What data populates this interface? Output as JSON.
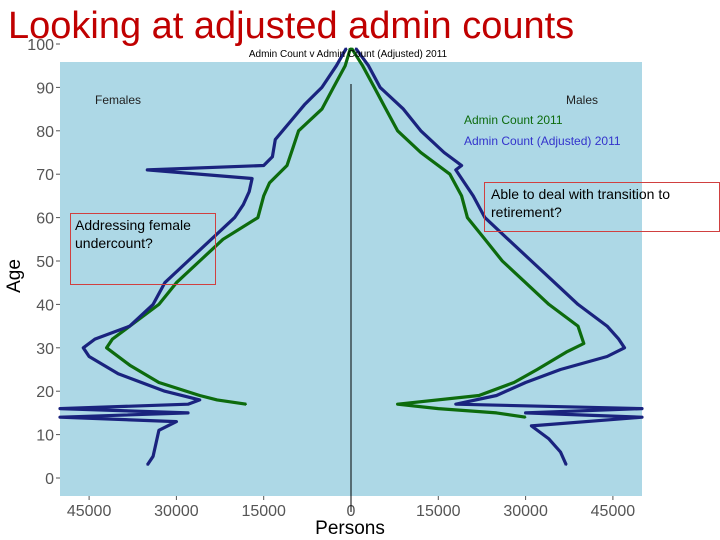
{
  "slide": {
    "title": "Looking at adjusted admin counts"
  },
  "callouts": {
    "left": "Addressing female undercount?",
    "right": "Able to deal with transition to retirement?"
  },
  "colors": {
    "panel_bg": "#add8e6",
    "adjusted_line": "#1a237e",
    "count_line": "#0d6b0d",
    "title": "#c00000"
  },
  "chart_data": {
    "type": "line",
    "title": "Admin Count v Admin Count (Adjusted) 2011",
    "xlabel": "Persons",
    "ylabel": "Age",
    "xlim": [
      -50000,
      50000
    ],
    "ylim": [
      0,
      100
    ],
    "x_ticks": [
      -45000,
      -30000,
      -15000,
      0,
      15000,
      30000,
      45000
    ],
    "x_tick_labels": [
      "45000",
      "30000",
      "15000",
      "0",
      "15000",
      "30000",
      "45000"
    ],
    "y_ticks": [
      0,
      10,
      20,
      30,
      40,
      50,
      60,
      70,
      80,
      90,
      100
    ],
    "panel_labels": {
      "left": "Females",
      "right": "Males"
    },
    "legend": [
      "Admin Count 2011",
      "Admin Count (Adjusted) 2011"
    ],
    "legend_position": "top-right",
    "series": [
      {
        "name": "Admin Count 2011",
        "color": "#0d6b0d",
        "points": [
          {
            "side": "female",
            "age": 17,
            "persons": -18000
          },
          {
            "side": "female",
            "age": 18,
            "persons": -23000
          },
          {
            "side": "female",
            "age": 19,
            "persons": -26000
          },
          {
            "side": "female",
            "age": 22,
            "persons": -33000
          },
          {
            "side": "female",
            "age": 26,
            "persons": -38000
          },
          {
            "side": "female",
            "age": 30,
            "persons": -42000
          },
          {
            "side": "female",
            "age": 32,
            "persons": -41000
          },
          {
            "side": "female",
            "age": 35,
            "persons": -38000
          },
          {
            "side": "female",
            "age": 40,
            "persons": -33000
          },
          {
            "side": "female",
            "age": 45,
            "persons": -30000
          },
          {
            "side": "female",
            "age": 50,
            "persons": -26000
          },
          {
            "side": "female",
            "age": 55,
            "persons": -22000
          },
          {
            "side": "female",
            "age": 60,
            "persons": -16000
          },
          {
            "side": "female",
            "age": 65,
            "persons": -15000
          },
          {
            "side": "female",
            "age": 68,
            "persons": -14000
          },
          {
            "side": "female",
            "age": 72,
            "persons": -11000
          },
          {
            "side": "female",
            "age": 76,
            "persons": -10000
          },
          {
            "side": "female",
            "age": 80,
            "persons": -9000
          },
          {
            "side": "female",
            "age": 85,
            "persons": -5000
          },
          {
            "side": "female",
            "age": 90,
            "persons": -3000
          },
          {
            "side": "female",
            "age": 95,
            "persons": -1000
          },
          {
            "side": "female",
            "age": 99,
            "persons": -100
          },
          {
            "side": "male",
            "age": 99,
            "persons": 100
          },
          {
            "side": "male",
            "age": 95,
            "persons": 2000
          },
          {
            "side": "male",
            "age": 90,
            "persons": 4000
          },
          {
            "side": "male",
            "age": 85,
            "persons": 6000
          },
          {
            "side": "male",
            "age": 80,
            "persons": 8000
          },
          {
            "side": "male",
            "age": 75,
            "persons": 12000
          },
          {
            "side": "male",
            "age": 70,
            "persons": 17000
          },
          {
            "side": "male",
            "age": 65,
            "persons": 19000
          },
          {
            "side": "male",
            "age": 60,
            "persons": 20000
          },
          {
            "side": "male",
            "age": 55,
            "persons": 23000
          },
          {
            "side": "male",
            "age": 50,
            "persons": 26000
          },
          {
            "side": "male",
            "age": 45,
            "persons": 30000
          },
          {
            "side": "male",
            "age": 40,
            "persons": 34000
          },
          {
            "side": "male",
            "age": 35,
            "persons": 39000
          },
          {
            "side": "male",
            "age": 31,
            "persons": 40000
          },
          {
            "side": "male",
            "age": 29,
            "persons": 37000
          },
          {
            "side": "male",
            "age": 25,
            "persons": 32000
          },
          {
            "side": "male",
            "age": 22,
            "persons": 28000
          },
          {
            "side": "male",
            "age": 19,
            "persons": 22000
          },
          {
            "side": "male",
            "age": 17,
            "persons": 8000
          },
          {
            "side": "male",
            "age": 16,
            "persons": 15000
          },
          {
            "side": "male",
            "age": 15,
            "persons": 25000
          },
          {
            "side": "male",
            "age": 14,
            "persons": 30000
          }
        ]
      },
      {
        "name": "Admin Count (Adjusted) 2011",
        "color": "#1a237e",
        "points": [
          {
            "side": "female",
            "age": 3,
            "persons": -35000
          },
          {
            "side": "female",
            "age": 5,
            "persons": -34000
          },
          {
            "side": "female",
            "age": 8,
            "persons": -33500
          },
          {
            "side": "female",
            "age": 11,
            "persons": -33000
          },
          {
            "side": "female",
            "age": 13,
            "persons": -30000
          },
          {
            "side": "female",
            "age": 14,
            "persons": -50000
          },
          {
            "side": "female",
            "age": 15,
            "persons": -28000
          },
          {
            "side": "female",
            "age": 16,
            "persons": -50000
          },
          {
            "side": "female",
            "age": 17,
            "persons": -28000
          },
          {
            "side": "female",
            "age": 18,
            "persons": -26000
          },
          {
            "side": "female",
            "age": 20,
            "persons": -32000
          },
          {
            "side": "female",
            "age": 24,
            "persons": -40000
          },
          {
            "side": "female",
            "age": 28,
            "persons": -45000
          },
          {
            "side": "female",
            "age": 30,
            "persons": -46000
          },
          {
            "side": "female",
            "age": 32,
            "persons": -44000
          },
          {
            "side": "female",
            "age": 35,
            "persons": -38000
          },
          {
            "side": "female",
            "age": 40,
            "persons": -34000
          },
          {
            "side": "female",
            "age": 45,
            "persons": -32000
          },
          {
            "side": "female",
            "age": 50,
            "persons": -28000
          },
          {
            "side": "female",
            "age": 55,
            "persons": -24000
          },
          {
            "side": "female",
            "age": 60,
            "persons": -20000
          },
          {
            "side": "female",
            "age": 63,
            "persons": -18500
          },
          {
            "side": "female",
            "age": 66,
            "persons": -17500
          },
          {
            "side": "female",
            "age": 69,
            "persons": -17000
          },
          {
            "side": "female",
            "age": 71,
            "persons": -35000
          },
          {
            "side": "female",
            "age": 72,
            "persons": -15000
          },
          {
            "side": "female",
            "age": 74,
            "persons": -13500
          },
          {
            "side": "female",
            "age": 78,
            "persons": -13000
          },
          {
            "side": "female",
            "age": 82,
            "persons": -10500
          },
          {
            "side": "female",
            "age": 86,
            "persons": -8000
          },
          {
            "side": "female",
            "age": 90,
            "persons": -5000
          },
          {
            "side": "female",
            "age": 95,
            "persons": -2500
          },
          {
            "side": "female",
            "age": 99,
            "persons": -800
          },
          {
            "side": "male",
            "age": 99,
            "persons": 800
          },
          {
            "side": "male",
            "age": 95,
            "persons": 3000
          },
          {
            "side": "male",
            "age": 90,
            "persons": 5000
          },
          {
            "side": "male",
            "age": 85,
            "persons": 9000
          },
          {
            "side": "male",
            "age": 80,
            "persons": 12000
          },
          {
            "side": "male",
            "age": 75,
            "persons": 16000
          },
          {
            "side": "male",
            "age": 72,
            "persons": 19000
          },
          {
            "side": "male",
            "age": 71,
            "persons": 18000
          },
          {
            "side": "male",
            "age": 68,
            "persons": 19500
          },
          {
            "side": "male",
            "age": 65,
            "persons": 21000
          },
          {
            "side": "male",
            "age": 60,
            "persons": 23000
          },
          {
            "side": "male",
            "age": 55,
            "persons": 27000
          },
          {
            "side": "male",
            "age": 50,
            "persons": 31000
          },
          {
            "side": "male",
            "age": 45,
            "persons": 35000
          },
          {
            "side": "male",
            "age": 40,
            "persons": 39000
          },
          {
            "side": "male",
            "age": 35,
            "persons": 44000
          },
          {
            "side": "male",
            "age": 32,
            "persons": 46000
          },
          {
            "side": "male",
            "age": 30,
            "persons": 47000
          },
          {
            "side": "male",
            "age": 28,
            "persons": 44000
          },
          {
            "side": "male",
            "age": 25,
            "persons": 36000
          },
          {
            "side": "male",
            "age": 22,
            "persons": 30000
          },
          {
            "side": "male",
            "age": 19,
            "persons": 25000
          },
          {
            "side": "male",
            "age": 17,
            "persons": 18000
          },
          {
            "side": "male",
            "age": 16,
            "persons": 50000
          },
          {
            "side": "male",
            "age": 15,
            "persons": 30000
          },
          {
            "side": "male",
            "age": 14,
            "persons": 50000
          },
          {
            "side": "male",
            "age": 12,
            "persons": 31000
          },
          {
            "side": "male",
            "age": 9,
            "persons": 34000
          },
          {
            "side": "male",
            "age": 6,
            "persons": 36000
          },
          {
            "side": "male",
            "age": 3,
            "persons": 37000
          }
        ]
      }
    ]
  }
}
